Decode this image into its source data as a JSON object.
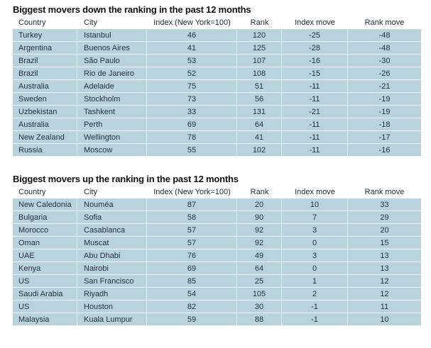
{
  "colors": {
    "row_background": "#b9d3dd",
    "row_separator": "#eef4f7",
    "text": "#22323d",
    "title_text": "#0f0f0f",
    "page_background": "#ffffff"
  },
  "cell_names": [
    "country-cell",
    "city-cell",
    "index-cell",
    "rank-cell",
    "index-move-cell",
    "rank-move-cell"
  ],
  "tables": [
    {
      "id": "movers-down",
      "title": "Biggest movers down the ranking in the past 12 months",
      "headers": [
        "Country",
        "City",
        "Index (New York=100)",
        "Rank",
        "Index move",
        "Rank move"
      ],
      "rows": [
        [
          "Turkey",
          "Istanbul",
          "46",
          "120",
          "-25",
          "-48"
        ],
        [
          "Argentina",
          "Buenos Aires",
          "41",
          "125",
          "-28",
          "-48"
        ],
        [
          "Brazil",
          "São Paulo",
          "53",
          "107",
          "-16",
          "-30"
        ],
        [
          "Brazil",
          "Rio de Janeiro",
          "52",
          "108",
          "-15",
          "-26"
        ],
        [
          "Australia",
          "Adelaide",
          "75",
          "51",
          "-11",
          "-21"
        ],
        [
          "Sweden",
          "Stockholm",
          "73",
          "56",
          "-11",
          "-19"
        ],
        [
          "Uzbekistan",
          "Tashkent",
          "33",
          "131",
          "-21",
          "-19"
        ],
        [
          "Australia",
          "Perth",
          "69",
          "64",
          "-11",
          "-18"
        ],
        [
          "New Zealand",
          "Wellington",
          "78",
          "41",
          "-11",
          "-17"
        ],
        [
          "Russia",
          "Moscow",
          "55",
          "102",
          "-11",
          "-16"
        ]
      ]
    },
    {
      "id": "movers-up",
      "title": "Biggest movers up the ranking in the past 12 months",
      "headers": [
        "Country",
        "City",
        "Index (New York=100)",
        "Rank",
        "Index move",
        "Rank move"
      ],
      "rows": [
        [
          "New Caledonia",
          "Nouméa",
          "87",
          "20",
          "10",
          "33"
        ],
        [
          "Bulgaria",
          "Sofia",
          "58",
          "90",
          "7",
          "29"
        ],
        [
          "Morocco",
          "Casablanca",
          "57",
          "92",
          "3",
          "20"
        ],
        [
          "Oman",
          "Muscat",
          "57",
          "92",
          "0",
          "15"
        ],
        [
          "UAE",
          "Abu Dhabi",
          "76",
          "49",
          "3",
          "13"
        ],
        [
          "Kenya",
          "Nairobi",
          "69",
          "64",
          "0",
          "13"
        ],
        [
          "US",
          "San Francisco",
          "85",
          "25",
          "1",
          "12"
        ],
        [
          "Saudi Arabia",
          "Riyadh",
          "54",
          "105",
          "2",
          "12"
        ],
        [
          "US",
          "Houston",
          "82",
          "30",
          "-1",
          "11"
        ],
        [
          "Malaysia",
          "Kuala Lumpur",
          "59",
          "88",
          "-1",
          "10"
        ]
      ]
    }
  ]
}
